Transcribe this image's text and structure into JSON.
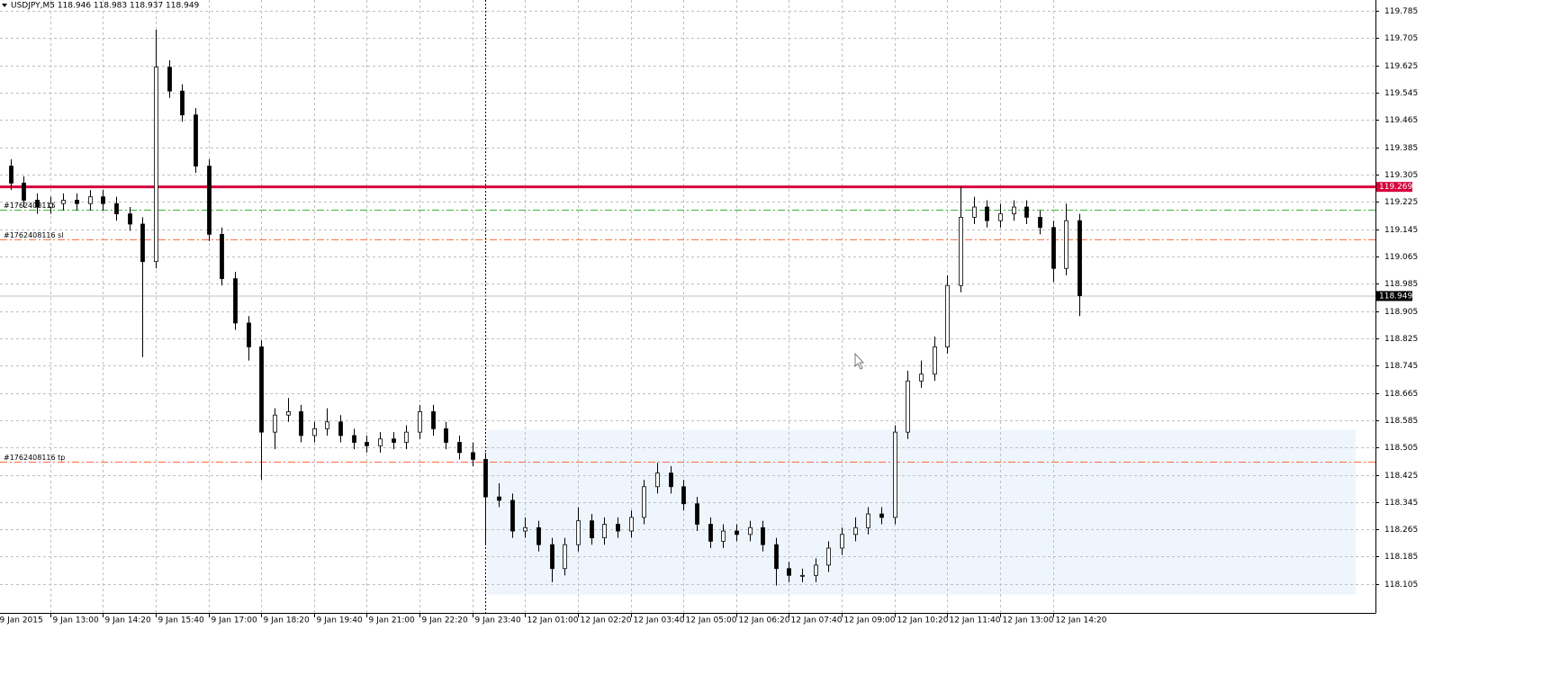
{
  "chart_data": {
    "type": "candlestick",
    "title": "USDJPY,M5  118.946 118.983 118.937 118.949",
    "x": [
      0,
      4,
      8,
      12,
      16,
      20,
      24,
      28,
      32,
      36,
      40,
      44,
      48,
      52,
      56,
      60,
      64,
      68,
      72,
      76,
      80,
      84,
      88,
      92,
      96,
      100,
      104,
      108,
      112,
      116,
      120,
      124,
      128,
      132,
      136,
      140,
      144,
      148,
      152,
      156,
      160,
      164,
      168,
      172,
      176,
      180,
      184,
      188,
      192,
      196,
      200,
      204,
      208,
      212,
      216,
      220,
      224,
      228,
      232,
      236,
      240,
      244,
      248,
      252,
      256,
      260,
      264,
      268,
      272,
      276,
      280,
      284,
      288,
      292,
      296,
      300,
      304,
      308,
      312,
      316,
      320,
      324,
      328
    ],
    "open": [
      119.36,
      119.33,
      119.28,
      119.23,
      119.21,
      119.22,
      119.23,
      119.22,
      119.24,
      119.22,
      119.19,
      119.16,
      119.05,
      119.62,
      119.55,
      119.48,
      119.33,
      119.13,
      119.0,
      118.87,
      118.8,
      118.55,
      118.6,
      118.61,
      118.54,
      118.56,
      118.58,
      118.54,
      118.52,
      118.51,
      118.53,
      118.52,
      118.55,
      118.61,
      118.56,
      118.52,
      118.49,
      118.47,
      118.36,
      118.35,
      118.26,
      118.27,
      118.22,
      118.15,
      118.22,
      118.29,
      118.24,
      118.28,
      118.26,
      118.3,
      118.39,
      118.43,
      118.39,
      118.34,
      118.28,
      118.23,
      118.26,
      118.25,
      118.27,
      118.22,
      118.15,
      118.13,
      118.13,
      118.16,
      118.21,
      118.25,
      118.27,
      118.31,
      118.3,
      118.55,
      118.7,
      118.72,
      118.8,
      118.98,
      119.18,
      119.21,
      119.17,
      119.19,
      119.21,
      119.18,
      119.15,
      119.03,
      119.17
    ],
    "high": [
      119.38,
      119.35,
      119.3,
      119.25,
      119.24,
      119.25,
      119.25,
      119.26,
      119.26,
      119.24,
      119.21,
      119.18,
      119.73,
      119.64,
      119.57,
      119.5,
      119.35,
      119.15,
      119.02,
      118.89,
      118.82,
      118.62,
      118.65,
      118.63,
      118.58,
      118.62,
      118.6,
      118.56,
      118.54,
      118.55,
      118.55,
      118.57,
      118.63,
      118.63,
      118.58,
      118.54,
      118.52,
      118.49,
      118.4,
      118.37,
      118.3,
      118.29,
      118.24,
      118.24,
      118.33,
      118.31,
      118.3,
      118.3,
      118.32,
      118.41,
      118.46,
      118.45,
      118.41,
      118.36,
      118.3,
      118.28,
      118.28,
      118.29,
      118.29,
      118.24,
      118.17,
      118.15,
      118.18,
      118.23,
      118.27,
      118.3,
      118.33,
      118.33,
      118.57,
      118.73,
      118.76,
      118.83,
      119.01,
      119.27,
      119.24,
      119.23,
      119.22,
      119.23,
      119.23,
      119.2,
      119.17,
      119.22,
      119.19
    ],
    "low": [
      119.31,
      119.26,
      119.21,
      119.19,
      119.19,
      119.2,
      119.2,
      119.2,
      119.2,
      119.17,
      119.14,
      118.77,
      119.03,
      119.53,
      119.46,
      119.31,
      119.11,
      118.98,
      118.85,
      118.76,
      118.41,
      118.5,
      118.58,
      118.52,
      118.52,
      118.54,
      118.52,
      118.5,
      118.49,
      118.49,
      118.5,
      118.5,
      118.53,
      118.54,
      118.5,
      118.47,
      118.45,
      118.22,
      118.33,
      118.24,
      118.24,
      118.2,
      118.11,
      118.13,
      118.2,
      118.22,
      118.22,
      118.24,
      118.24,
      118.28,
      118.37,
      118.37,
      118.32,
      118.26,
      118.21,
      118.21,
      118.23,
      118.23,
      118.2,
      118.1,
      118.11,
      118.11,
      118.11,
      118.14,
      118.19,
      118.23,
      118.25,
      118.28,
      118.28,
      118.53,
      118.68,
      118.7,
      118.78,
      118.96,
      119.16,
      119.15,
      119.15,
      119.17,
      119.16,
      119.13,
      118.99,
      119.01,
      118.89
    ],
    "close": [
      119.33,
      119.28,
      119.23,
      119.21,
      119.22,
      119.23,
      119.22,
      119.24,
      119.22,
      119.19,
      119.16,
      119.05,
      119.62,
      119.55,
      119.48,
      119.33,
      119.13,
      119.0,
      118.87,
      118.8,
      118.55,
      118.6,
      118.61,
      118.54,
      118.56,
      118.58,
      118.54,
      118.52,
      118.51,
      118.53,
      118.52,
      118.55,
      118.61,
      118.56,
      118.52,
      118.49,
      118.47,
      118.36,
      118.35,
      118.26,
      118.27,
      118.22,
      118.15,
      118.22,
      118.29,
      118.24,
      118.28,
      118.26,
      118.3,
      118.39,
      118.43,
      118.39,
      118.34,
      118.28,
      118.23,
      118.26,
      118.25,
      118.27,
      118.22,
      118.15,
      118.13,
      118.13,
      118.16,
      118.21,
      118.25,
      118.27,
      118.31,
      118.3,
      118.55,
      118.7,
      118.72,
      118.8,
      118.98,
      119.18,
      119.21,
      119.17,
      119.19,
      119.21,
      119.18,
      119.15,
      119.03,
      119.17,
      118.95
    ],
    "xlim": [
      0.8,
      417.8
    ],
    "xticks": [
      {
        "value": 0,
        "label": "9 Jan 2015"
      },
      {
        "value": 16,
        "label": "9 Jan 13:00"
      },
      {
        "value": 32,
        "label": "9 Jan 14:20"
      },
      {
        "value": 48,
        "label": "9 Jan 15:40"
      },
      {
        "value": 64,
        "label": "9 Jan 17:00"
      },
      {
        "value": 80,
        "label": "9 Jan 18:20"
      },
      {
        "value": 96,
        "label": "9 Jan 19:40"
      },
      {
        "value": 112,
        "label": "9 Jan 21:00"
      },
      {
        "value": 128,
        "label": "9 Jan 22:20"
      },
      {
        "value": 144,
        "label": "9 Jan 23:40"
      },
      {
        "value": 160,
        "label": "12 Jan 01:00"
      },
      {
        "value": 176,
        "label": "12 Jan 02:20"
      },
      {
        "value": 192,
        "label": "12 Jan 03:40"
      },
      {
        "value": 208,
        "label": "12 Jan 05:00"
      },
      {
        "value": 224,
        "label": "12 Jan 06:20"
      },
      {
        "value": 240,
        "label": "12 Jan 07:40"
      },
      {
        "value": 256,
        "label": "12 Jan 09:00"
      },
      {
        "value": 272,
        "label": "12 Jan 10:20"
      },
      {
        "value": 288,
        "label": "12 Jan 11:40"
      },
      {
        "value": 304,
        "label": "12 Jan 13:00"
      },
      {
        "value": 320,
        "label": "12 Jan 14:20"
      }
    ],
    "ylim": [
      118.02,
      119.817
    ],
    "yticks": [
      119.785,
      119.705,
      119.625,
      119.545,
      119.465,
      119.385,
      119.305,
      119.225,
      119.145,
      119.065,
      118.985,
      118.905,
      118.825,
      118.745,
      118.665,
      118.585,
      118.505,
      118.425,
      118.345,
      118.265,
      118.185,
      118.105
    ],
    "grid": true,
    "levels": [
      {
        "value": 119.269,
        "color": "#d6003c",
        "style": "thick",
        "tag": true
      },
      {
        "value": 119.201,
        "color": "#3cb43c",
        "style": "dashdot",
        "label": "#1762408116"
      },
      {
        "value": 119.114,
        "color": "#ff6a3c",
        "style": "dashdot",
        "label": "#1762408116 sl"
      },
      {
        "value": 118.462,
        "color": "#ff6a3c",
        "style": "dashdot",
        "label": "#1762408116 tp"
      },
      {
        "value": 118.949,
        "color": "#c0c0c0",
        "style": "solid",
        "tag": true
      }
    ],
    "separator": 148,
    "zone": {
      "x": [
        148.5,
        411.8
      ],
      "y": [
        118.074,
        118.557
      ],
      "color": "#eef5fd"
    }
  }
}
